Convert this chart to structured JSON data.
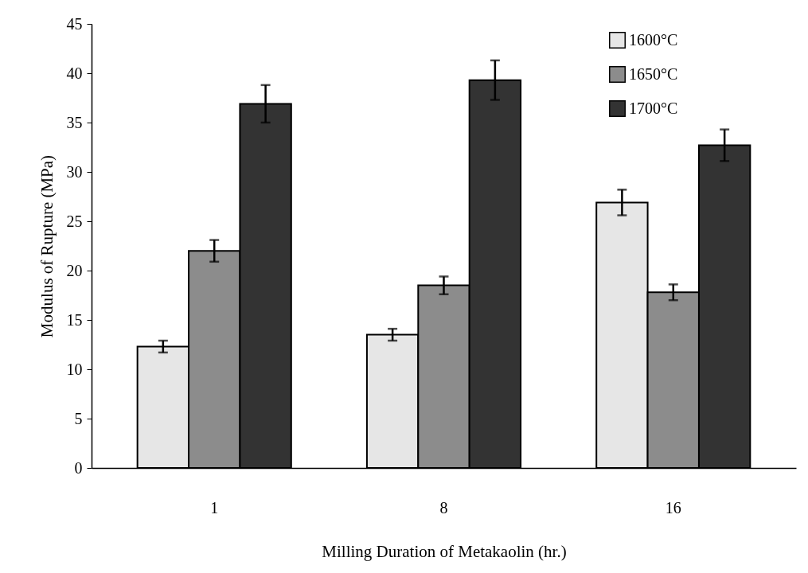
{
  "chart_data": {
    "type": "bar",
    "xlabel": "Milling Duration of Metakaolin (hr.)",
    "ylabel": "Modulus of Rupture (MPa)",
    "categories": [
      "1",
      "8",
      "16"
    ],
    "series": [
      {
        "name": "1600°C",
        "color": "#e6e6e6",
        "values": [
          12.3,
          13.5,
          26.9
        ],
        "errors": [
          0.6,
          0.6,
          1.3
        ]
      },
      {
        "name": "1650°C",
        "color": "#8c8c8c",
        "values": [
          22.0,
          18.5,
          17.8
        ],
        "errors": [
          1.1,
          0.9,
          0.8
        ]
      },
      {
        "name": "1700°C",
        "color": "#333333",
        "values": [
          36.9,
          39.3,
          32.7
        ],
        "errors": [
          1.9,
          2.0,
          1.6
        ]
      }
    ],
    "ylim": [
      0,
      45
    ],
    "yticks": [
      0,
      5,
      10,
      15,
      20,
      25,
      30,
      35,
      40,
      45
    ],
    "grid": false,
    "legend": "top right"
  }
}
